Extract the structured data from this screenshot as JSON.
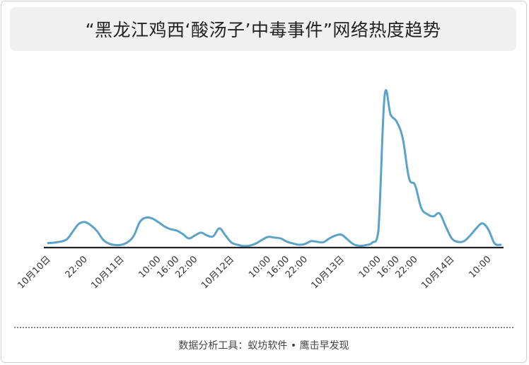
{
  "title": "“黑龙江鸡西‘酸汤子’中毒事件”网络热度趋势",
  "footer": "数据分析工具：蚁坊软件 • 鹰击早发现",
  "colors": {
    "line": "#5ba3c8",
    "axis": "#222222",
    "title_bg": "#f0f0f0"
  },
  "chart_data": {
    "type": "line",
    "title": "“黑龙江鸡西‘酸汤子’中毒事件”网络热度趋势",
    "xlabel": "",
    "ylabel": "",
    "grid": false,
    "ylim": [
      0,
      100
    ],
    "tick_labels": [
      "10月10日",
      "22:00",
      "10月11日",
      "10:00",
      "16:00",
      "22:00",
      "10月12日",
      "10:00",
      "16:00",
      "22:00",
      "10月13日",
      "10:00",
      "16:00",
      "22:00",
      "10月14日",
      "10:00"
    ],
    "tick_positions": [
      0,
      12,
      24,
      36,
      42,
      48,
      60,
      72,
      78,
      84,
      96,
      108,
      114,
      120,
      132,
      144
    ],
    "x": [
      0,
      3,
      6,
      8,
      10,
      12,
      14,
      16,
      18,
      20,
      22,
      24,
      26,
      28,
      30,
      32,
      34,
      36,
      38,
      40,
      42,
      44,
      46,
      48,
      50,
      52,
      54,
      56,
      58,
      60,
      62,
      64,
      66,
      68,
      70,
      72,
      74,
      76,
      78,
      80,
      82,
      84,
      86,
      88,
      90,
      92,
      94,
      96,
      98,
      100,
      102,
      104,
      106,
      108,
      110,
      112,
      114,
      116,
      118,
      120,
      122,
      124,
      126,
      128,
      130,
      132,
      134,
      136,
      138,
      140,
      142,
      144,
      146,
      148
    ],
    "values": [
      2.5,
      3.1,
      4.8,
      9.9,
      15.1,
      16.4,
      14.2,
      10.4,
      4.7,
      2.1,
      1.2,
      1.4,
      3.1,
      7.3,
      16.4,
      19.3,
      18.8,
      16.4,
      13.6,
      11.7,
      10.8,
      8.5,
      5.6,
      7.5,
      9.4,
      7.5,
      7.0,
      12.2,
      7.5,
      2.8,
      1.4,
      0.5,
      0.9,
      2.3,
      4.7,
      6.6,
      6.1,
      5.6,
      3.5,
      2.3,
      1.4,
      1.9,
      3.8,
      3.3,
      3.1,
      5.6,
      7.5,
      8.0,
      4.7,
      1.6,
      0.7,
      1.2,
      2.8,
      10.3,
      99.1,
      87.3,
      82.6,
      71.4,
      45.5,
      40.8,
      25.8,
      21.6,
      20.2,
      22.1,
      13.6,
      5.6,
      3.3,
      3.8,
      7.5,
      12.2,
      15.5,
      11.3,
      2.3,
      1.4
    ]
  }
}
